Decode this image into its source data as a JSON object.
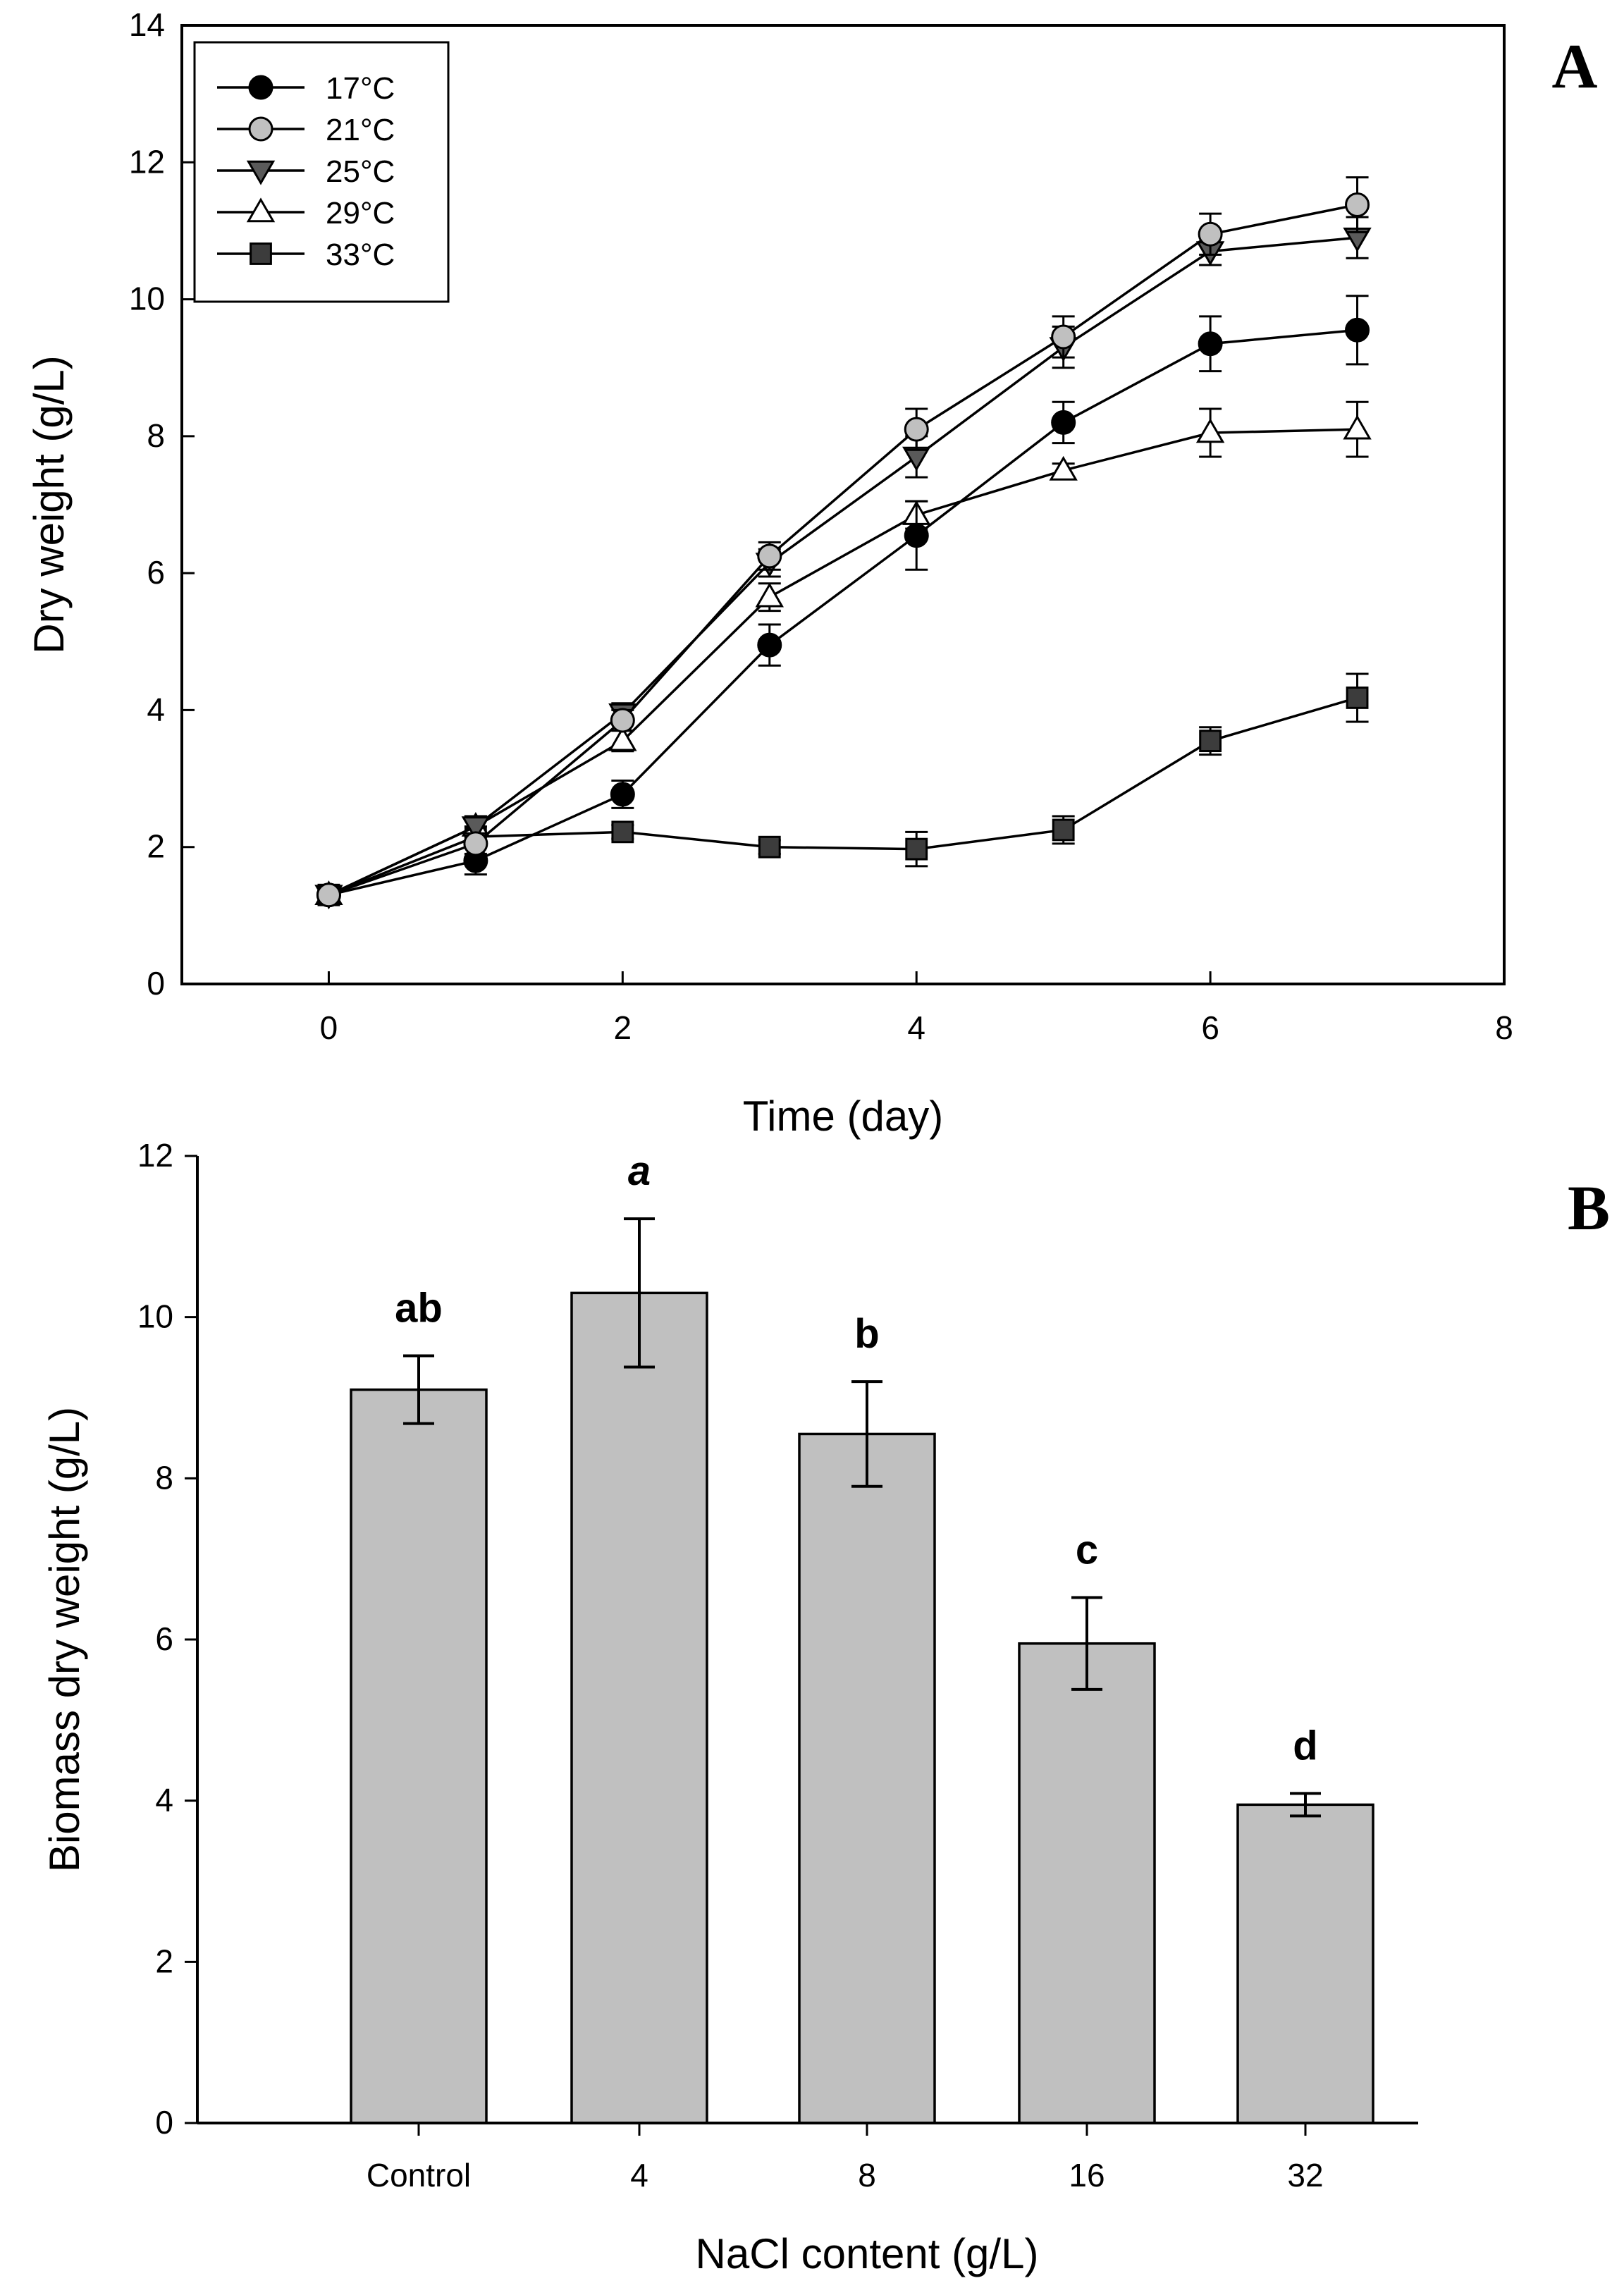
{
  "chart_data": [
    {
      "panel_label": "A",
      "type": "line",
      "title": "",
      "xlabel": "Time (day)",
      "ylabel": "Dry weight (g/L)",
      "xlim": [
        -1,
        8
      ],
      "ylim": [
        0,
        14
      ],
      "xticks": [
        0,
        2,
        4,
        6,
        8
      ],
      "yticks": [
        0,
        2,
        4,
        6,
        8,
        10,
        12,
        14
      ],
      "x": [
        0,
        1,
        2,
        3,
        4,
        5,
        6,
        7
      ],
      "legend_position": "top-left",
      "series": [
        {
          "name": "17°C",
          "marker": "circle",
          "color": "#000000",
          "values": [
            1.3,
            1.8,
            2.77,
            4.95,
            6.55,
            8.2,
            9.35,
            9.55
          ],
          "errors": [
            0.1,
            0.2,
            0.2,
            0.3,
            0.5,
            0.3,
            0.4,
            0.5
          ]
        },
        {
          "name": "21°C",
          "marker": "circle",
          "color": "#c0c0c0",
          "values": [
            1.3,
            2.05,
            3.85,
            6.25,
            8.1,
            9.45,
            10.95,
            11.38
          ],
          "errors": [
            0.1,
            0.15,
            0.15,
            0.2,
            0.3,
            0.3,
            0.3,
            0.4
          ]
        },
        {
          "name": "25°C",
          "marker": "triangle-down",
          "color": "#5a5a5a",
          "values": [
            1.3,
            2.3,
            3.95,
            6.15,
            7.7,
            9.3,
            10.7,
            10.9
          ],
          "errors": [
            0.1,
            0.15,
            0.15,
            0.2,
            0.3,
            0.3,
            0.2,
            0.3
          ]
        },
        {
          "name": "29°C",
          "marker": "triangle-up",
          "color": "#ffffff",
          "values": [
            1.3,
            2.3,
            3.55,
            5.65,
            6.85,
            7.5,
            8.05,
            8.1
          ],
          "errors": [
            0.1,
            0.15,
            0.15,
            0.2,
            0.2,
            0.1,
            0.35,
            0.4
          ]
        },
        {
          "name": "33°C",
          "marker": "square",
          "color": "#3c3c3c",
          "values": [
            1.3,
            2.15,
            2.22,
            2.0,
            1.97,
            2.25,
            3.55,
            4.18
          ],
          "errors": [
            0.1,
            0.15,
            0.1,
            0.1,
            0.25,
            0.2,
            0.2,
            0.35
          ]
        }
      ]
    },
    {
      "panel_label": "B",
      "type": "bar",
      "title": "",
      "xlabel": "NaCl content (g/L)",
      "ylabel": "Biomass dry weight (g/L)",
      "ylim": [
        0,
        12
      ],
      "yticks": [
        0,
        2,
        4,
        6,
        8,
        10,
        12
      ],
      "categories": [
        "Control",
        "4",
        "8",
        "16",
        "32"
      ],
      "values": [
        9.1,
        10.3,
        8.55,
        5.95,
        3.95
      ],
      "errors": [
        0.42,
        0.92,
        0.65,
        0.57,
        0.14
      ],
      "bar_color": "#c0c0c0",
      "significance_letters": [
        "ab",
        "a",
        "b",
        "c",
        "d"
      ],
      "letter_italic": [
        false,
        true,
        false,
        false,
        false
      ]
    }
  ]
}
